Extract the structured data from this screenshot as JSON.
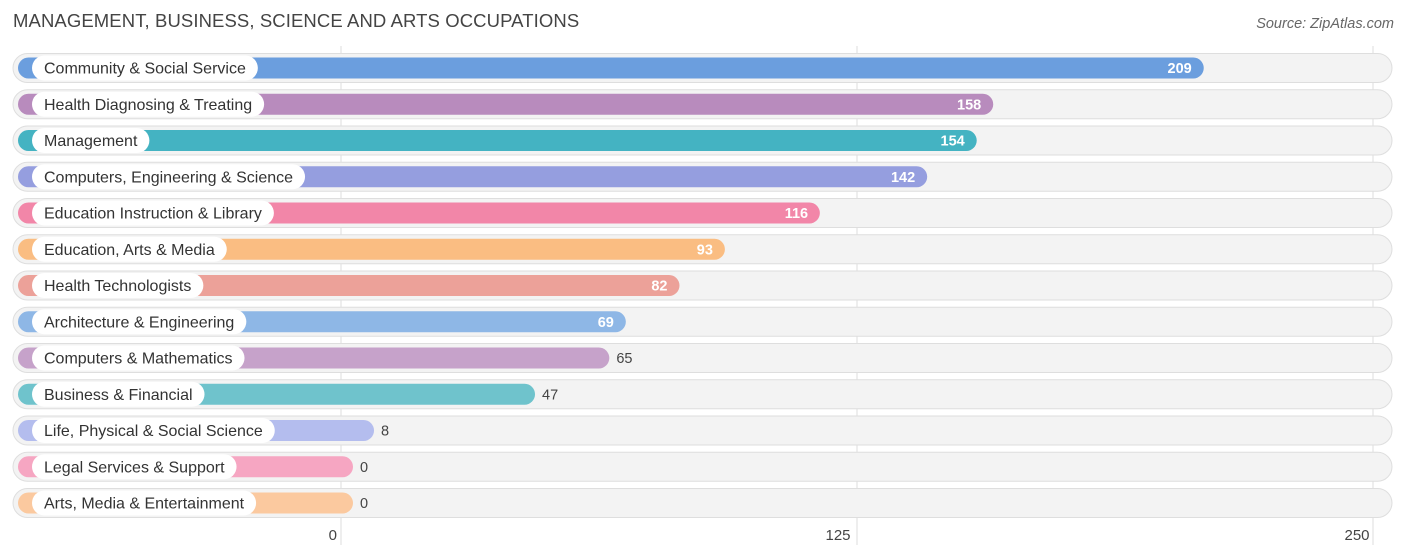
{
  "title": "MANAGEMENT, BUSINESS, SCIENCE AND ARTS OCCUPATIONS",
  "source": "Source: ZipAtlas.com",
  "chart_data": {
    "type": "bar",
    "orientation": "horizontal",
    "title": "MANAGEMENT, BUSINESS, SCIENCE AND ARTS OCCUPATIONS",
    "xlim": [
      0,
      250
    ],
    "ticks": [
      0,
      125,
      250
    ],
    "tick_labels": [
      "0",
      "125",
      "250"
    ],
    "grid": true,
    "categories": [
      "Community & Social Service",
      "Health Diagnosing & Treating",
      "Management",
      "Computers, Engineering & Science",
      "Education Instruction & Library",
      "Education, Arts & Media",
      "Health Technologists",
      "Architecture & Engineering",
      "Computers & Mathematics",
      "Business & Financial",
      "Life, Physical & Social Science",
      "Legal Services & Support",
      "Arts, Media & Entertainment"
    ],
    "values": [
      209,
      158,
      154,
      142,
      116,
      93,
      82,
      69,
      65,
      47,
      8,
      0,
      0
    ],
    "value_labels": [
      "209",
      "158",
      "154",
      "142",
      "116",
      "93",
      "82",
      "69",
      "65",
      "47",
      "8",
      "0",
      "0"
    ],
    "colors": [
      "#6b9ede",
      "#b88bbd",
      "#44b3c2",
      "#959edf",
      "#f286a8",
      "#fabd82",
      "#eca199",
      "#8eb7e6",
      "#c6a2ca",
      "#6fc3cc",
      "#b4bdee",
      "#f6a6c2",
      "#fbc99f"
    ]
  }
}
